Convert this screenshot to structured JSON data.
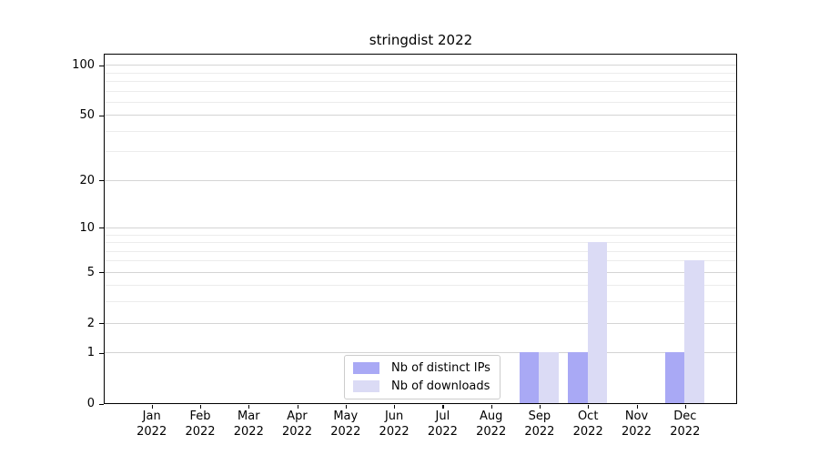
{
  "window": {
    "background": "#ffffff"
  },
  "chart_data": {
    "type": "bar",
    "title": "stringdist 2022",
    "categories": [
      "Jan",
      "Feb",
      "Mar",
      "Apr",
      "May",
      "Jun",
      "Jul",
      "Aug",
      "Sep",
      "Oct",
      "Nov",
      "Dec"
    ],
    "category_year_line": "2022",
    "series": [
      {
        "name": "Nb of distinct IPs",
        "color": "#a9a9f5",
        "values": [
          0,
          0,
          0,
          0,
          0,
          0,
          0,
          0,
          1,
          1,
          0,
          1
        ]
      },
      {
        "name": "Nb of downloads",
        "color": "#dbdbf5",
        "values": [
          0,
          0,
          0,
          0,
          0,
          0,
          0,
          0,
          1,
          8,
          0,
          6
        ]
      }
    ],
    "xlabel": "",
    "ylabel": "",
    "yscale": "log1p",
    "ylim": [
      0,
      115
    ],
    "y_ticks": [
      0,
      1,
      2,
      5,
      10,
      20,
      50,
      100
    ],
    "y_minor_gridlines": [
      3,
      4,
      6,
      7,
      8,
      9,
      30,
      40,
      60,
      70,
      80,
      90
    ],
    "grid": "horizontal-major-and-minor",
    "legend_position": "lower-center-inside"
  },
  "colors": {
    "major_grid": "#d4d4d4",
    "minor_grid": "#ececec",
    "spine": "#000000",
    "legend_border": "#cccccc"
  }
}
